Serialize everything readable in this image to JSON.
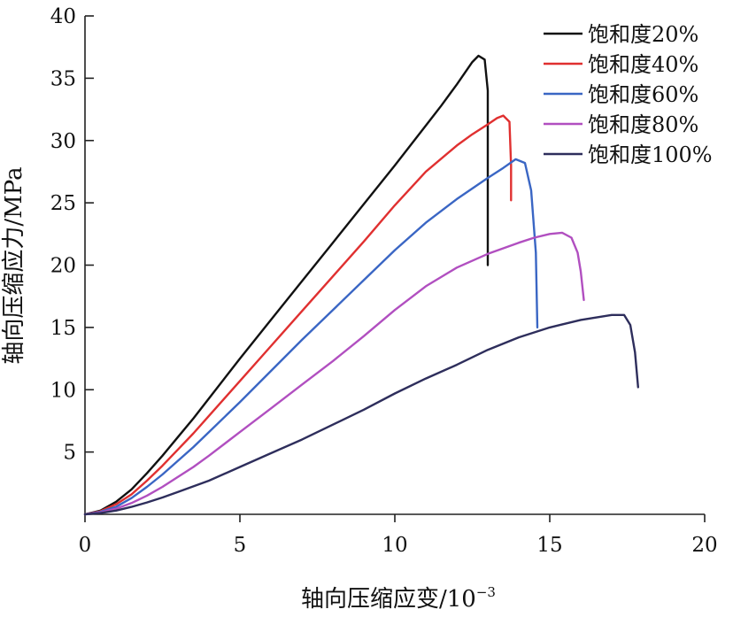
{
  "chart_data": {
    "type": "line",
    "title": "",
    "xlabel": "轴向压缩应变/10",
    "xlabel_sup": "−3",
    "ylabel": "轴向压缩应力/MPa",
    "xlim": [
      0,
      20
    ],
    "ylim": [
      0,
      40
    ],
    "x_ticks": [
      0,
      5,
      10,
      15,
      20
    ],
    "y_ticks": [
      5,
      10,
      15,
      20,
      25,
      30,
      35,
      40
    ],
    "grid": false,
    "legend_position": "top-right",
    "series": [
      {
        "name": "饱和度20%",
        "color": "#111111",
        "points": [
          [
            0,
            0
          ],
          [
            0.5,
            0.3
          ],
          [
            1,
            1.0
          ],
          [
            1.5,
            2.0
          ],
          [
            2,
            3.3
          ],
          [
            2.5,
            4.7
          ],
          [
            3,
            6.2
          ],
          [
            3.5,
            7.7
          ],
          [
            4,
            9.3
          ],
          [
            5,
            12.5
          ],
          [
            6,
            15.6
          ],
          [
            7,
            18.7
          ],
          [
            8,
            21.8
          ],
          [
            9,
            24.9
          ],
          [
            10,
            28.0
          ],
          [
            11,
            31.2
          ],
          [
            11.5,
            32.8
          ],
          [
            12,
            34.5
          ],
          [
            12.5,
            36.3
          ],
          [
            12.7,
            36.8
          ],
          [
            12.9,
            36.5
          ],
          [
            13.0,
            34
          ],
          [
            13.0,
            20
          ]
        ]
      },
      {
        "name": "饱和度40%",
        "color": "#e03030",
        "points": [
          [
            0,
            0
          ],
          [
            0.5,
            0.25
          ],
          [
            1,
            0.8
          ],
          [
            1.5,
            1.6
          ],
          [
            2,
            2.7
          ],
          [
            2.5,
            3.9
          ],
          [
            3,
            5.2
          ],
          [
            3.5,
            6.5
          ],
          [
            4,
            7.9
          ],
          [
            5,
            10.7
          ],
          [
            6,
            13.5
          ],
          [
            7,
            16.3
          ],
          [
            8,
            19.1
          ],
          [
            9,
            21.9
          ],
          [
            10,
            24.8
          ],
          [
            11,
            27.5
          ],
          [
            12,
            29.6
          ],
          [
            12.5,
            30.5
          ],
          [
            13,
            31.3
          ],
          [
            13.3,
            31.8
          ],
          [
            13.5,
            32.0
          ],
          [
            13.7,
            31.5
          ],
          [
            13.75,
            28
          ],
          [
            13.75,
            25.2
          ]
        ]
      },
      {
        "name": "饱和度60%",
        "color": "#3a66c4",
        "points": [
          [
            0,
            0
          ],
          [
            0.5,
            0.2
          ],
          [
            1,
            0.6
          ],
          [
            1.5,
            1.3
          ],
          [
            2,
            2.2
          ],
          [
            2.5,
            3.2
          ],
          [
            3,
            4.3
          ],
          [
            3.5,
            5.4
          ],
          [
            4,
            6.6
          ],
          [
            5,
            9.0
          ],
          [
            6,
            11.5
          ],
          [
            7,
            14.0
          ],
          [
            8,
            16.4
          ],
          [
            9,
            18.8
          ],
          [
            10,
            21.2
          ],
          [
            11,
            23.4
          ],
          [
            12,
            25.3
          ],
          [
            13,
            27.0
          ],
          [
            13.5,
            27.8
          ],
          [
            13.9,
            28.5
          ],
          [
            14.2,
            28.2
          ],
          [
            14.4,
            26
          ],
          [
            14.55,
            21
          ],
          [
            14.6,
            15
          ]
        ]
      },
      {
        "name": "饱和度80%",
        "color": "#b14fc0",
        "points": [
          [
            0,
            0
          ],
          [
            0.5,
            0.15
          ],
          [
            1,
            0.45
          ],
          [
            1.5,
            0.9
          ],
          [
            2,
            1.5
          ],
          [
            2.5,
            2.2
          ],
          [
            3,
            3.0
          ],
          [
            3.5,
            3.8
          ],
          [
            4,
            4.7
          ],
          [
            5,
            6.6
          ],
          [
            6,
            8.5
          ],
          [
            7,
            10.4
          ],
          [
            8,
            12.3
          ],
          [
            9,
            14.3
          ],
          [
            10,
            16.4
          ],
          [
            11,
            18.3
          ],
          [
            12,
            19.8
          ],
          [
            13,
            20.9
          ],
          [
            14,
            21.8
          ],
          [
            14.5,
            22.2
          ],
          [
            15,
            22.5
          ],
          [
            15.4,
            22.6
          ],
          [
            15.7,
            22.2
          ],
          [
            15.9,
            21
          ],
          [
            16.0,
            19.5
          ],
          [
            16.1,
            17.2
          ]
        ]
      },
      {
        "name": "饱和度100%",
        "color": "#2e2e5c",
        "points": [
          [
            0,
            0
          ],
          [
            0.5,
            0.1
          ],
          [
            1,
            0.3
          ],
          [
            1.5,
            0.6
          ],
          [
            2,
            0.95
          ],
          [
            2.5,
            1.35
          ],
          [
            3,
            1.8
          ],
          [
            4,
            2.7
          ],
          [
            5,
            3.8
          ],
          [
            6,
            4.9
          ],
          [
            7,
            6.0
          ],
          [
            8,
            7.2
          ],
          [
            9,
            8.4
          ],
          [
            10,
            9.7
          ],
          [
            11,
            10.9
          ],
          [
            12,
            12.0
          ],
          [
            13,
            13.2
          ],
          [
            14,
            14.2
          ],
          [
            15,
            15.0
          ],
          [
            16,
            15.6
          ],
          [
            17,
            16.0
          ],
          [
            17.4,
            16.0
          ],
          [
            17.6,
            15.2
          ],
          [
            17.75,
            13
          ],
          [
            17.85,
            10.2
          ]
        ]
      }
    ]
  }
}
